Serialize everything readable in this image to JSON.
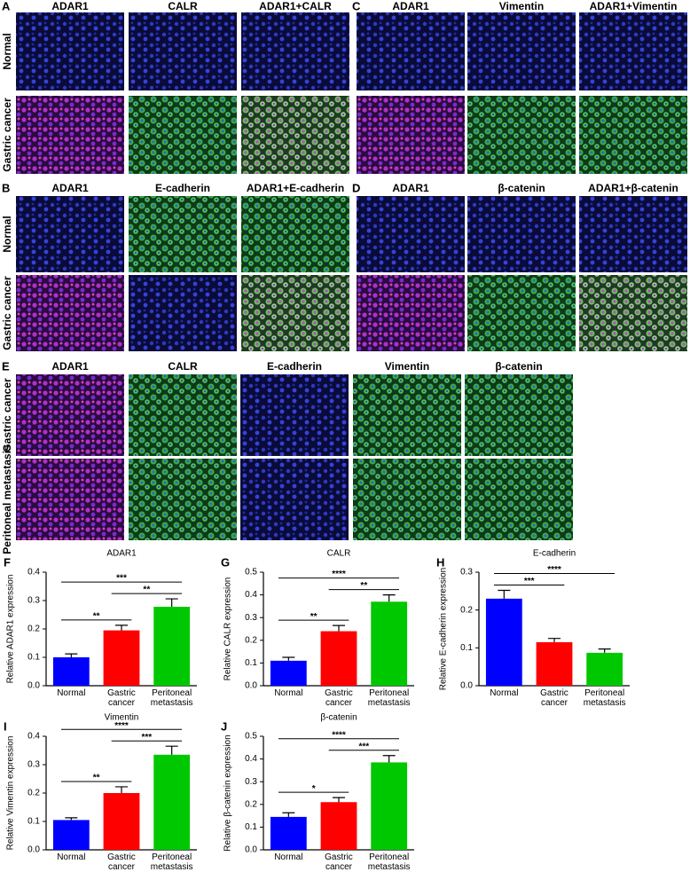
{
  "figure_panels": [
    {
      "letter": "A",
      "columns": [
        "ADAR1",
        "CALR",
        "ADAR1+CALR"
      ],
      "rows": [
        "Normal",
        "Gastric cancer"
      ]
    },
    {
      "letter": "C",
      "columns": [
        "ADAR1",
        "Vimentin",
        "ADAR1+Vimentin"
      ],
      "rows": []
    },
    {
      "letter": "B",
      "columns": [
        "ADAR1",
        "E-cadherin",
        "ADAR1+E-cadherin"
      ],
      "rows": [
        "Normal",
        "Gastric cancer"
      ]
    },
    {
      "letter": "D",
      "columns": [
        "ADAR1",
        "β-catenin",
        "ADAR1+β-catenin"
      ],
      "rows": []
    },
    {
      "letter": "E",
      "columns": [
        "ADAR1",
        "CALR",
        "E-cadherin",
        "Vimentin",
        "β-catenin"
      ],
      "rows": [
        "Gastric cancer",
        "Peritoneal metastasis"
      ]
    }
  ],
  "chart_data": [
    {
      "type": "bar",
      "panel": "F",
      "title": "ADAR1",
      "ylabel": "Relative ADAR1 expression",
      "categories": [
        "Normal",
        "Gastric cancer",
        "Peritoneal metastasis"
      ],
      "colors": [
        "#0000ff",
        "#ff0000",
        "#00c800"
      ],
      "values": [
        0.1,
        0.195,
        0.278
      ],
      "errors": [
        0.012,
        0.018,
        0.028
      ],
      "ylim": [
        0,
        0.4
      ],
      "yticks": [
        {
          "value": 0,
          "label": "0.0"
        },
        0.1,
        0.2,
        0.3,
        0.4
      ],
      "significance": [
        {
          "pair": [
            0,
            1
          ],
          "label": "**"
        },
        {
          "pair": [
            1,
            2
          ],
          "label": "**"
        },
        {
          "pair": [
            0,
            2
          ],
          "label": "***"
        }
      ]
    },
    {
      "type": "bar",
      "panel": "G",
      "title": "CALR",
      "ylabel": "Relative CALR expression",
      "categories": [
        "Normal",
        "Gastric cancer",
        "Peritoneal metastasis"
      ],
      "colors": [
        "#0000ff",
        "#ff0000",
        "#00c800"
      ],
      "values": [
        0.11,
        0.24,
        0.37
      ],
      "errors": [
        0.015,
        0.025,
        0.03
      ],
      "ylim": [
        0,
        0.5
      ],
      "yticks": [
        {
          "value": 0,
          "label": "0.0"
        },
        0.1,
        0.2,
        0.3,
        0.4,
        0.5
      ],
      "significance": [
        {
          "pair": [
            0,
            1
          ],
          "label": "**"
        },
        {
          "pair": [
            1,
            2
          ],
          "label": "**"
        },
        {
          "pair": [
            0,
            2
          ],
          "label": "****"
        }
      ]
    },
    {
      "type": "bar",
      "panel": "H",
      "title": "E-cadherin",
      "ylabel": "Relative E-cadherin expression",
      "categories": [
        "Normal",
        "Gastric cancer",
        "Peritoneal metastasis"
      ],
      "colors": [
        "#0000ff",
        "#ff0000",
        "#00c800"
      ],
      "values": [
        0.23,
        0.115,
        0.087
      ],
      "errors": [
        0.022,
        0.01,
        0.01
      ],
      "ylim": [
        0,
        0.3
      ],
      "yticks": [
        {
          "value": 0,
          "label": "0.0"
        },
        0.1,
        0.2,
        0.3
      ],
      "significance": [
        {
          "pair": [
            0,
            1
          ],
          "label": "***"
        },
        {
          "pair": [
            0,
            2
          ],
          "label": "****"
        }
      ]
    },
    {
      "type": "bar",
      "panel": "I",
      "title": "Vimentin",
      "ylabel": "Relative Vimentin expression",
      "categories": [
        "Normal",
        "Gastric cancer",
        "Peritoneal metastasis"
      ],
      "colors": [
        "#0000ff",
        "#ff0000",
        "#00c800"
      ],
      "values": [
        0.105,
        0.2,
        0.335
      ],
      "errors": [
        0.008,
        0.022,
        0.03
      ],
      "ylim": [
        0,
        0.4
      ],
      "yticks": [
        {
          "value": 0,
          "label": "0.0"
        },
        0.1,
        0.2,
        0.3,
        0.4
      ],
      "significance": [
        {
          "pair": [
            0,
            1
          ],
          "label": "**"
        },
        {
          "pair": [
            1,
            2
          ],
          "label": "***"
        },
        {
          "pair": [
            0,
            2
          ],
          "label": "****"
        }
      ]
    },
    {
      "type": "bar",
      "panel": "J",
      "title": "β-catenin",
      "ylabel": "Relative β-catenin expression",
      "categories": [
        "Normal",
        "Gastric cancer",
        "Peritoneal metastasis"
      ],
      "colors": [
        "#0000ff",
        "#ff0000",
        "#00c800"
      ],
      "values": [
        0.145,
        0.21,
        0.385
      ],
      "errors": [
        0.018,
        0.02,
        0.03
      ],
      "ylim": [
        0,
        0.5
      ],
      "yticks": [
        {
          "value": 0,
          "label": "0.0"
        },
        0.1,
        0.2,
        0.3,
        0.4,
        0.5
      ],
      "significance": [
        {
          "pair": [
            0,
            1
          ],
          "label": "*"
        },
        {
          "pair": [
            1,
            2
          ],
          "label": "***"
        },
        {
          "pair": [
            0,
            2
          ],
          "label": "****"
        }
      ]
    }
  ]
}
